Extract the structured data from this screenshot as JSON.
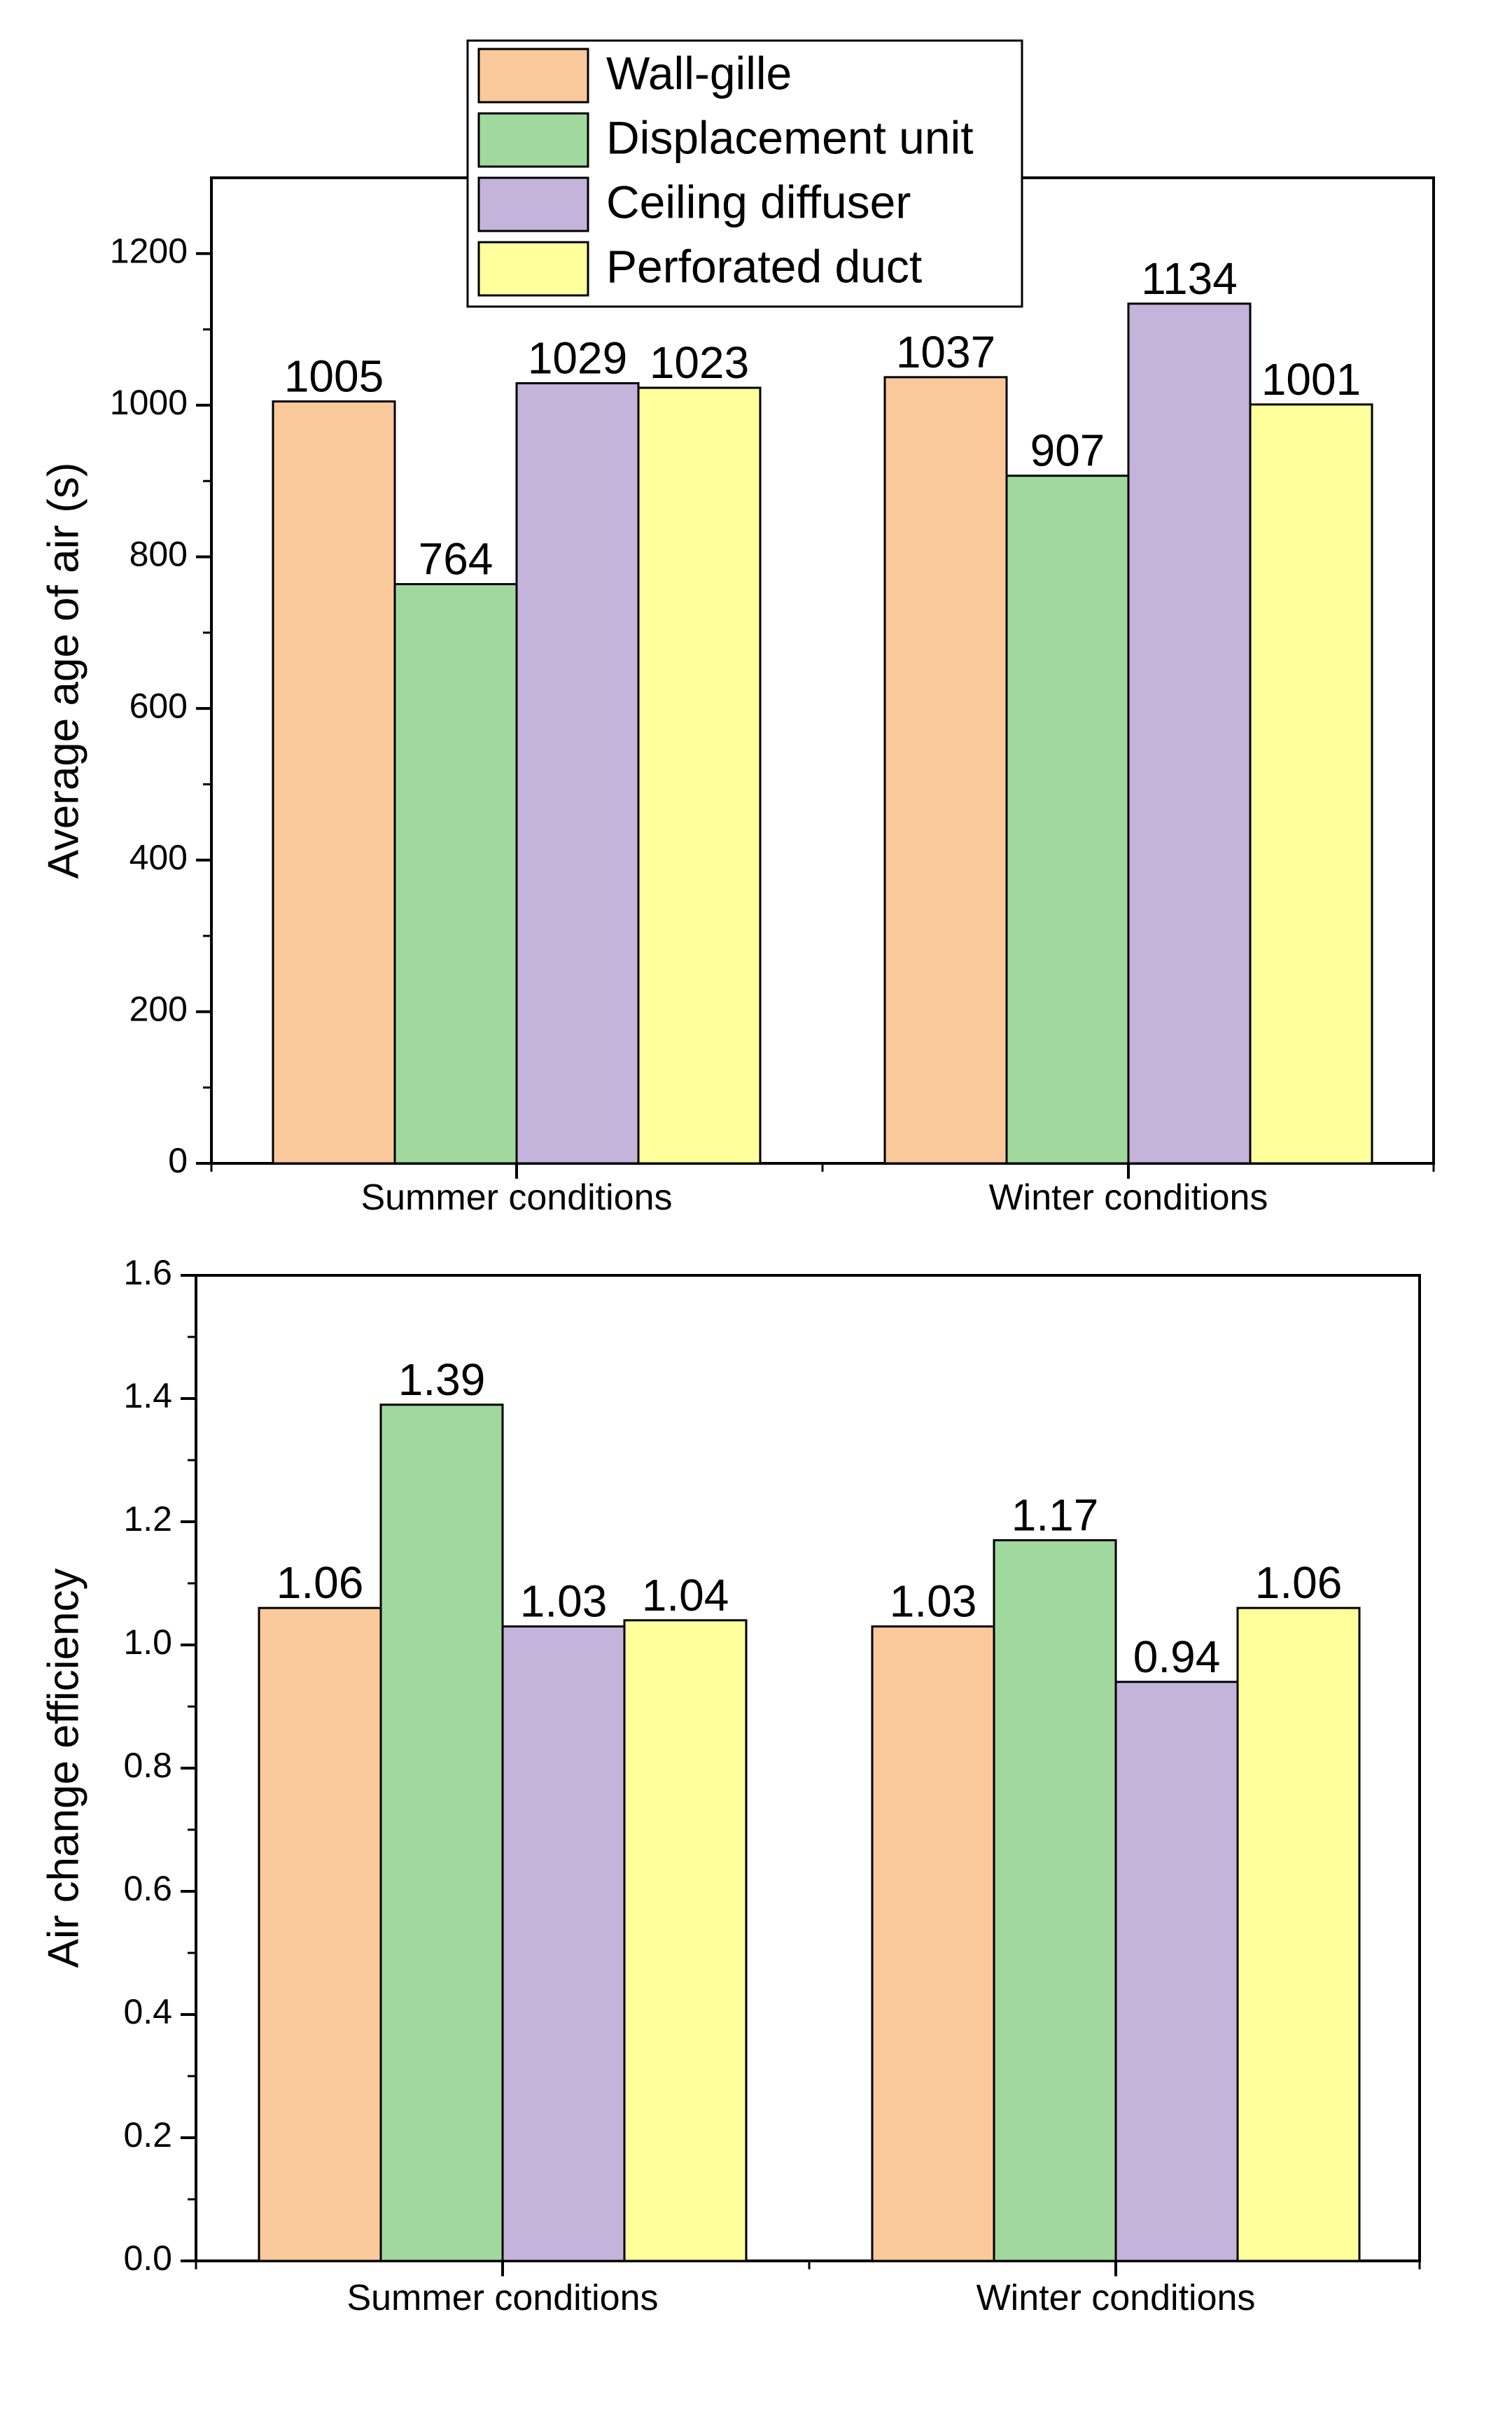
{
  "chart_data": [
    {
      "type": "bar",
      "categories": [
        "Summer conditions",
        "Winter conditions"
      ],
      "series": [
        {
          "name": "Wall-gille",
          "values": [
            1005,
            1037
          ],
          "color": "#F9C89B"
        },
        {
          "name": "Displacement unit",
          "values": [
            764,
            907
          ],
          "color": "#A1D89E"
        },
        {
          "name": "Ceiling diffuser",
          "values": [
            1029,
            1134
          ],
          "color": "#C4B3DB"
        },
        {
          "name": "Perforated duct",
          "values": [
            1023,
            1001
          ],
          "color": "#FFFF9C"
        }
      ],
      "data_labels": [
        [
          "1005",
          "1037"
        ],
        [
          "764",
          "907"
        ],
        [
          "1029",
          "1134"
        ],
        [
          "1023",
          "1001"
        ]
      ],
      "ylabel": "Average age of air (s)",
      "xlabel": "",
      "ylim": [
        0,
        1300
      ],
      "yticks": [
        "0",
        "200",
        "400",
        "600",
        "800",
        "1000",
        "1200"
      ],
      "grid": false,
      "legend": "top-center"
    },
    {
      "type": "bar",
      "categories": [
        "Summer conditions",
        "Winter conditions"
      ],
      "series": [
        {
          "name": "Wall-gille",
          "values": [
            1.06,
            1.03
          ],
          "color": "#F9C89B"
        },
        {
          "name": "Displacement unit",
          "values": [
            1.39,
            1.17
          ],
          "color": "#A1D89E"
        },
        {
          "name": "Ceiling diffuser",
          "values": [
            1.03,
            0.94
          ],
          "color": "#C4B3DB"
        },
        {
          "name": "Perforated duct",
          "values": [
            1.04,
            1.06
          ],
          "color": "#FFFF9C"
        }
      ],
      "data_labels": [
        [
          "1.06",
          "1.03"
        ],
        [
          "1.39",
          "1.17"
        ],
        [
          "1.03",
          "0.94"
        ],
        [
          "1.04",
          "1.06"
        ]
      ],
      "ylabel": "Air change efficiency",
      "xlabel": "",
      "ylim": [
        0,
        1.6
      ],
      "yticks": [
        "0.0",
        "0.2",
        "0.4",
        "0.6",
        "0.8",
        "1.0",
        "1.2",
        "1.4",
        "1.6"
      ],
      "grid": false,
      "legend": "none"
    }
  ]
}
